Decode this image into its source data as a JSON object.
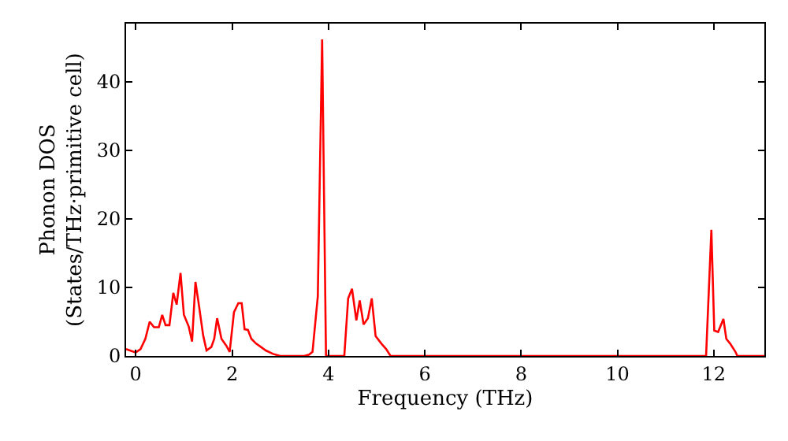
{
  "chart_data": {
    "type": "line",
    "xlabel": "Frequency (THz)",
    "ylabel": "Phonon DOS\n(States/THz·primitive cell)",
    "xlim": [
      -0.2,
      13.05
    ],
    "ylim": [
      0,
      48.5
    ],
    "xticks": [
      0,
      2,
      4,
      6,
      8,
      10,
      12
    ],
    "yticks": [
      0,
      10,
      20,
      30,
      40
    ],
    "marker": "none",
    "line_style": "solid",
    "series": [
      {
        "color": "#ff0000",
        "x": [
          -0.2,
          0.0,
          0.1,
          0.2,
          0.29,
          0.38,
          0.48,
          0.55,
          0.62,
          0.7,
          0.78,
          0.85,
          0.93,
          1.0,
          1.1,
          1.17,
          1.24,
          1.3,
          1.4,
          1.47,
          1.57,
          1.63,
          1.69,
          1.78,
          1.88,
          1.95,
          2.04,
          2.13,
          2.2,
          2.26,
          2.33,
          2.4,
          2.5,
          2.6,
          2.7,
          2.85,
          3.0,
          3.5,
          3.6,
          3.67,
          3.78,
          3.87,
          3.95,
          4.33,
          4.41,
          4.49,
          4.58,
          4.65,
          4.73,
          4.82,
          4.9,
          4.98,
          5.1,
          5.2,
          5.29,
          11.84,
          11.95,
          12.01,
          12.09,
          12.2,
          12.26,
          12.34,
          12.45,
          12.49,
          13.05
        ],
        "values": [
          1.0,
          0.5,
          1.0,
          2.5,
          5.0,
          4.2,
          4.2,
          6.0,
          4.5,
          4.5,
          9.2,
          7.5,
          12.1,
          6.0,
          4.3,
          2.1,
          10.8,
          8.0,
          3.0,
          0.8,
          1.3,
          2.5,
          5.5,
          2.5,
          1.5,
          0.6,
          6.4,
          7.7,
          7.7,
          3.9,
          3.8,
          2.5,
          1.8,
          1.3,
          0.8,
          0.3,
          0,
          0,
          0.2,
          0.6,
          8.7,
          46.2,
          0,
          0,
          8.4,
          9.8,
          5.2,
          8.1,
          4.6,
          5.5,
          8.4,
          2.9,
          1.8,
          1.0,
          0,
          0,
          18.4,
          3.7,
          3.5,
          5.4,
          2.5,
          1.8,
          0.6,
          0,
          0
        ]
      }
    ]
  }
}
